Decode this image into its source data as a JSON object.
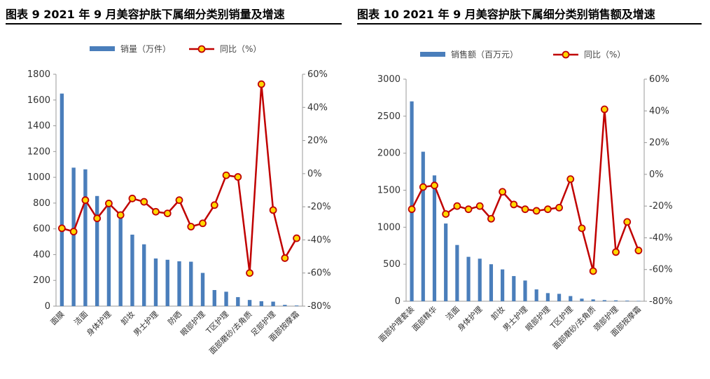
{
  "header": {
    "title_left": "图表 9 2021 年 9 月美容护肤下属细分类别销量及增速",
    "title_right": "图表 10 2021 年 9 月美容护肤下属细分类别销售额及增速"
  },
  "colors": {
    "bar": "#4a7ebb",
    "line": "#c00000",
    "marker_fill": "#ffd700"
  },
  "chart_data": [
    {
      "type": "bar",
      "legend": [
        "销量（万件）",
        "同比（%）"
      ],
      "categories": [
        "面膜",
        "",
        "洁面",
        "",
        "身体护理",
        "",
        "卸妆",
        "",
        "男士护理",
        "",
        "防晒",
        "",
        "眼部护理",
        "",
        "T区护理",
        "",
        "面部磨砂/去角质",
        "",
        "足部护理",
        "",
        "面部按摩霜"
      ],
      "series": [
        {
          "name": "销量（万件）",
          "axis": "left",
          "values": [
            1650,
            1075,
            1062,
            855,
            805,
            715,
            555,
            480,
            370,
            360,
            348,
            345,
            258,
            125,
            112,
            70,
            48,
            38,
            35,
            10,
            5
          ]
        },
        {
          "name": "同比（%）",
          "axis": "right",
          "values": [
            -33,
            -35,
            -16,
            -27,
            -18,
            -25,
            -15,
            -17,
            -23,
            -24,
            -16,
            -32,
            -30,
            -19,
            -1,
            -2,
            -60,
            54,
            -22,
            -51,
            -39
          ]
        }
      ],
      "y_left_ticks": [
        "0",
        "200",
        "400",
        "600",
        "800",
        "1000",
        "1200",
        "1400",
        "1600",
        "1800"
      ],
      "y_right_ticks": [
        "-80%",
        "-60%",
        "-40%",
        "-20%",
        "0%",
        "20%",
        "40%",
        "60%"
      ],
      "ylim_left": [
        0,
        1800
      ],
      "ylim_right": [
        -80,
        60
      ]
    },
    {
      "type": "bar",
      "legend": [
        "销售额（百万元）",
        "同比（%）"
      ],
      "categories": [
        "面部护理套装",
        "",
        "面部精华",
        "",
        "洁面",
        "",
        "身体护理",
        "",
        "卸妆",
        "",
        "男士护理",
        "",
        "眼部护理",
        "",
        "T区护理",
        "",
        "面部磨砂/去角质",
        "",
        "颈部护理",
        "",
        "面部按摩霜"
      ],
      "series": [
        {
          "name": "销售额（百万元）",
          "axis": "left",
          "values": [
            2700,
            2020,
            1700,
            1050,
            760,
            600,
            575,
            500,
            430,
            340,
            280,
            160,
            110,
            100,
            70,
            35,
            25,
            15,
            12,
            8,
            5
          ]
        },
        {
          "name": "同比（%）",
          "axis": "right",
          "values": [
            -22,
            -8,
            -7,
            -25,
            -20,
            -22,
            -20,
            -28,
            -11,
            -19,
            -22,
            -23,
            -22,
            -21,
            -3,
            -34,
            -61,
            41,
            -49,
            -30,
            -48
          ]
        }
      ],
      "y_left_ticks": [
        "0",
        "500",
        "1000",
        "1500",
        "2000",
        "2500",
        "3000"
      ],
      "y_right_ticks": [
        "-80%",
        "-60%",
        "-40%",
        "-20%",
        "0%",
        "20%",
        "40%",
        "60%"
      ],
      "ylim_left": [
        0,
        3000
      ],
      "ylim_right": [
        -80,
        60
      ]
    }
  ]
}
